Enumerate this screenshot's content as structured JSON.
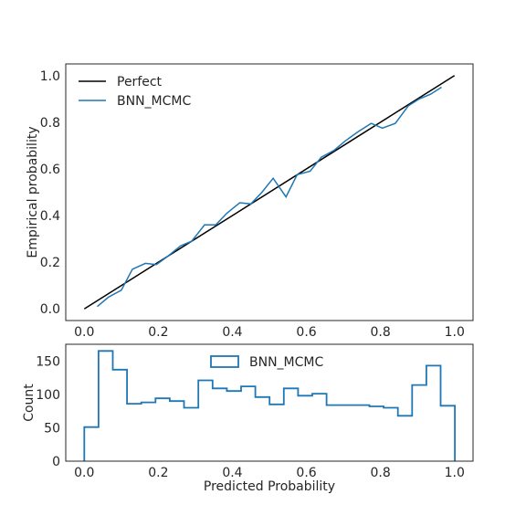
{
  "chart_data": [
    {
      "type": "line",
      "title": "",
      "xlabel": "",
      "ylabel": "Empirical probability",
      "xlim": [
        -0.05,
        1.05
      ],
      "ylim": [
        -0.05,
        1.05
      ],
      "xticks": [
        "0.0",
        "0.2",
        "0.4",
        "0.6",
        "0.8",
        "1.0"
      ],
      "yticks": [
        "0.0",
        "0.2",
        "0.4",
        "0.6",
        "0.8",
        "1.0"
      ],
      "grid": false,
      "legend_position": "upper-left",
      "series": [
        {
          "name": "Perfect",
          "color": "#000000",
          "x": [
            0.0,
            1.0
          ],
          "y": [
            0.0,
            1.0
          ]
        },
        {
          "name": "BNN_MCMC",
          "color": "#1f77b4",
          "x": [
            0.035,
            0.065,
            0.1,
            0.13,
            0.165,
            0.195,
            0.225,
            0.26,
            0.29,
            0.325,
            0.355,
            0.385,
            0.42,
            0.45,
            0.48,
            0.51,
            0.545,
            0.575,
            0.61,
            0.64,
            0.675,
            0.705,
            0.74,
            0.775,
            0.805,
            0.84,
            0.875,
            0.905,
            0.935,
            0.965
          ],
          "y": [
            0.01,
            0.05,
            0.08,
            0.17,
            0.195,
            0.19,
            0.225,
            0.27,
            0.29,
            0.36,
            0.36,
            0.41,
            0.455,
            0.45,
            0.5,
            0.56,
            0.48,
            0.575,
            0.59,
            0.65,
            0.68,
            0.72,
            0.76,
            0.795,
            0.775,
            0.795,
            0.87,
            0.9,
            0.92,
            0.95
          ]
        }
      ]
    },
    {
      "type": "bar",
      "title": "",
      "xlabel": "Predicted Probability",
      "ylabel": "Count",
      "xlim": [
        -0.05,
        1.05
      ],
      "ylim": [
        0,
        175
      ],
      "xticks": [
        "0.0",
        "0.2",
        "0.4",
        "0.6",
        "0.8",
        "1.0"
      ],
      "yticks": [
        "0",
        "50",
        "100",
        "150"
      ],
      "grid": false,
      "legend_position": "upper-center",
      "histtype": "step",
      "bin_width": 0.0385,
      "series": [
        {
          "name": "BNN_MCMC",
          "color": "#1f77b4",
          "bin_edges_start": 0.0,
          "values": [
            51,
            165,
            137,
            86,
            88,
            94,
            90,
            80,
            121,
            109,
            105,
            112,
            96,
            85,
            109,
            98,
            101,
            84,
            84,
            84,
            82,
            80,
            68,
            114,
            143,
            83
          ]
        }
      ]
    }
  ]
}
